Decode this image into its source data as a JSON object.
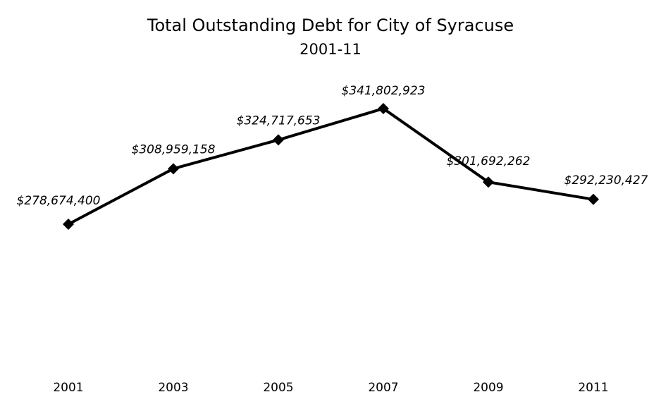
{
  "chart_data": {
    "type": "line",
    "title": "Total Outstanding Debt for City of Syracuse",
    "subtitle": "2001-11",
    "xlabel": "",
    "ylabel": "",
    "categories": [
      "2001",
      "2003",
      "2005",
      "2007",
      "2009",
      "2011"
    ],
    "series": [
      {
        "values": [
          278674400,
          308959158,
          324717653,
          341802923,
          301692262,
          292230427
        ],
        "labels": [
          "$278,674,400",
          "$308,959,158",
          "$324,717,653",
          "$341,802,923",
          "$301,692,262",
          "$292,230,427"
        ],
        "color": "#000000",
        "marker": "diamond"
      }
    ],
    "ylim": [
      170000000,
      360000000
    ],
    "grid": false,
    "legend": "none",
    "y_axis_visible": false
  }
}
